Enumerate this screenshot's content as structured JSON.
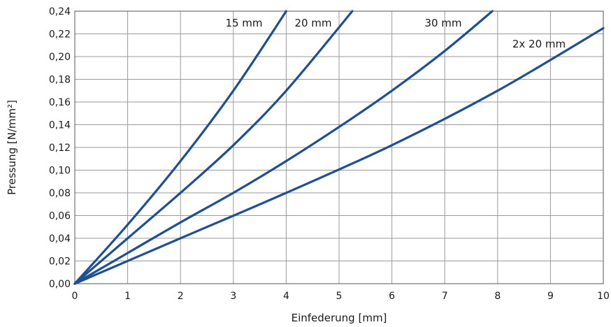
{
  "chart_data": {
    "type": "line",
    "title": "",
    "xlabel": "Einfederung [mm]",
    "ylabel": "Pressung [N/mm²]",
    "xlim": [
      0,
      10
    ],
    "ylim": [
      0,
      0.24
    ],
    "x_ticks": [
      "0",
      "1",
      "2",
      "3",
      "4",
      "5",
      "6",
      "7",
      "8",
      "9",
      "10"
    ],
    "y_ticks": [
      "0,00",
      "0,02",
      "0,04",
      "0,06",
      "0,08",
      "0,10",
      "0,12",
      "0,14",
      "0,16",
      "0,18",
      "0,20",
      "0,22",
      "0,24"
    ],
    "grid": true,
    "line_color": "#1e4f96",
    "series": [
      {
        "name": "15 mm",
        "x": [
          0,
          1,
          2,
          3,
          4
        ],
        "y": [
          0,
          0.052,
          0.108,
          0.17,
          0.24
        ]
      },
      {
        "name": "20 mm",
        "x": [
          0,
          1,
          2,
          3,
          4,
          5.25
        ],
        "y": [
          0,
          0.04,
          0.08,
          0.122,
          0.17,
          0.24
        ]
      },
      {
        "name": "30 mm",
        "x": [
          0,
          1,
          2,
          3,
          4,
          5,
          6,
          7,
          7.9
        ],
        "y": [
          0,
          0.027,
          0.054,
          0.08,
          0.108,
          0.138,
          0.17,
          0.205,
          0.24
        ]
      },
      {
        "name": "2x 20 mm",
        "x": [
          0,
          2,
          4,
          6,
          8,
          10
        ],
        "y": [
          0,
          0.04,
          0.08,
          0.122,
          0.17,
          0.225
        ]
      }
    ]
  }
}
